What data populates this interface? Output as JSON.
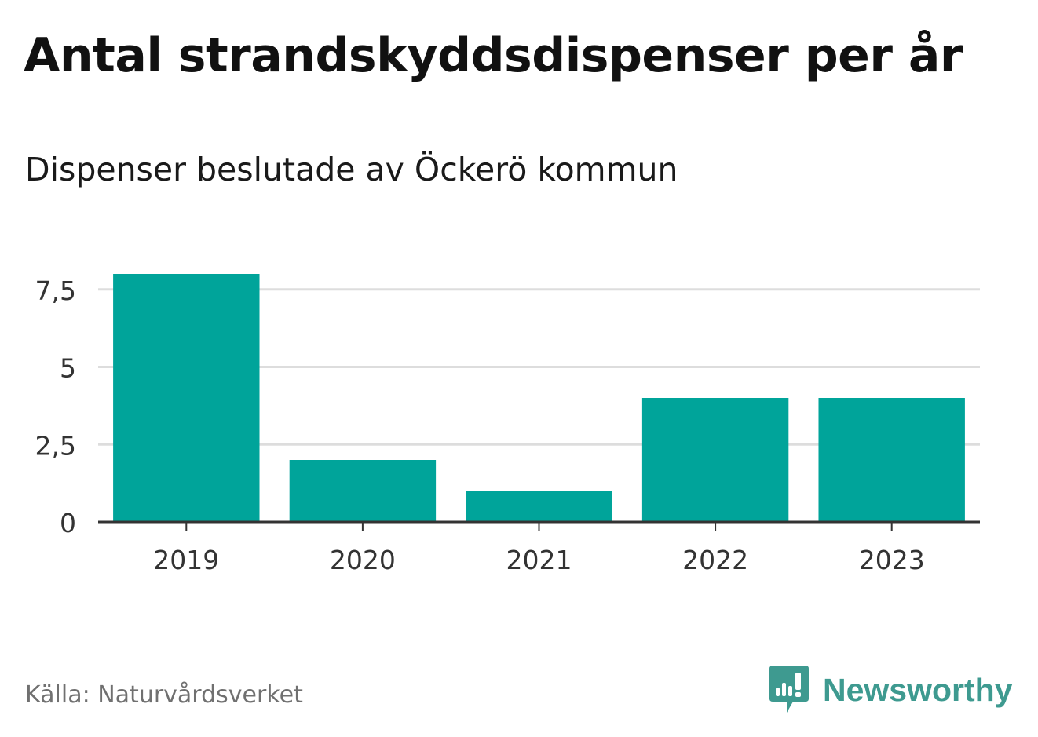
{
  "title": "Antal strandskyddsdispenser per år",
  "subtitle": "Dispenser beslutade av Öckerö kommun",
  "source": "Källa: Naturvårdsverket",
  "brand": {
    "name": "Newsworthy",
    "icon": "newsworthy-logo-icon",
    "color": "#3e9a90"
  },
  "chart_data": {
    "type": "bar",
    "title": "Antal strandskyddsdispenser per år",
    "subtitle": "Dispenser beslutade av Öckerö kommun",
    "categories": [
      "2019",
      "2020",
      "2021",
      "2022",
      "2023"
    ],
    "values": [
      8,
      2,
      1,
      4,
      4
    ],
    "xlabel": "",
    "ylabel": "",
    "ylim": [
      0,
      8
    ],
    "yticks": [
      {
        "value": 0,
        "label": "0"
      },
      {
        "value": 2.5,
        "label": "2,5"
      },
      {
        "value": 5,
        "label": "5"
      },
      {
        "value": 7.5,
        "label": "7,5"
      }
    ],
    "grid": true,
    "bar_color": "#00a49a"
  }
}
